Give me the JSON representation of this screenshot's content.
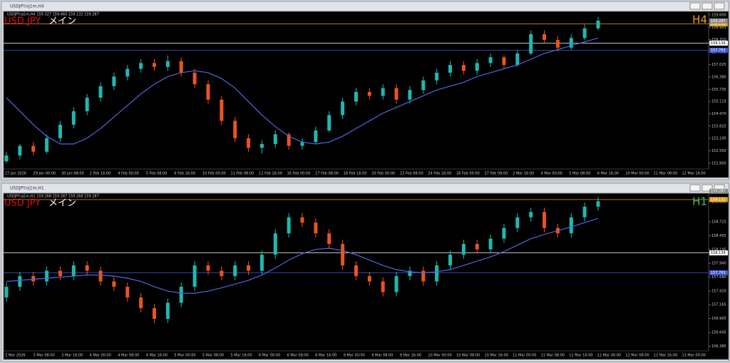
{
  "windows": [
    {
      "title": "USDJPY.oj1m,H4",
      "info": "USDJPY.oj1m,H4  159.327 159.460 159.132 159.287",
      "symbol": "USD JPY",
      "label": "メイン",
      "timeframe": "H4",
      "timeframe_color": "#f0a020",
      "ylim": [
        151.6,
        159.78
      ],
      "price_ticks": [
        {
          "value": 159.6,
          "label": "159.600"
        },
        158.955,
        {
          "value": 158.31,
          "label": "158.310"
        },
        157.665,
        157.025,
        {
          "value": 156.38,
          "label": "156.380"
        },
        155.735,
        155.115,
        {
          "value": 154.47,
          "label": "154.470"
        },
        153.825,
        153.195,
        {
          "value": 152.55,
          "label": "152.550"
        },
        151.905
      ],
      "levels": [
        {
          "price": 159.132,
          "color": "#e0a020"
        },
        {
          "price": 158.134,
          "color": "#ffffff"
        },
        {
          "price": 157.763,
          "color": "#3d5ad8"
        }
      ],
      "current_price": 159.287,
      "up_color": "#1fb8b0",
      "down_color": "#ea5420",
      "ma_color": "#5066e0",
      "candles": [
        [
          152.0,
          152.5,
          151.9,
          152.3
        ],
        [
          152.3,
          152.9,
          152.1,
          152.8
        ],
        [
          152.8,
          153.0,
          152.3,
          152.5
        ],
        [
          152.5,
          153.4,
          152.4,
          153.2
        ],
        [
          153.2,
          154.1,
          153.0,
          153.9
        ],
        [
          153.9,
          154.8,
          153.7,
          154.6
        ],
        [
          154.6,
          155.5,
          154.4,
          155.3
        ],
        [
          155.3,
          156.1,
          155.1,
          155.9
        ],
        [
          155.9,
          156.6,
          155.7,
          156.4
        ],
        [
          156.4,
          157.0,
          156.2,
          156.8
        ],
        [
          156.8,
          157.3,
          156.6,
          157.1
        ],
        [
          157.1,
          157.3,
          156.7,
          156.9
        ],
        [
          156.9,
          157.5,
          156.7,
          157.2
        ],
        [
          157.2,
          157.4,
          156.4,
          156.6
        ],
        [
          156.6,
          156.8,
          155.8,
          156.0
        ],
        [
          156.0,
          156.2,
          155.0,
          155.2
        ],
        [
          155.2,
          155.4,
          153.9,
          154.1
        ],
        [
          154.1,
          154.3,
          153.0,
          153.2
        ],
        [
          153.2,
          153.4,
          152.5,
          152.7
        ],
        [
          152.7,
          153.1,
          152.4,
          152.9
        ],
        [
          152.9,
          153.6,
          152.7,
          153.4
        ],
        [
          153.4,
          153.5,
          152.6,
          152.8
        ],
        [
          152.8,
          153.2,
          152.6,
          153.0
        ],
        [
          153.0,
          153.8,
          152.9,
          153.6
        ],
        [
          153.6,
          154.6,
          153.5,
          154.4
        ],
        [
          154.4,
          155.3,
          154.2,
          155.1
        ],
        [
          155.1,
          155.8,
          154.9,
          155.6
        ],
        [
          155.6,
          155.8,
          155.2,
          155.4
        ],
        [
          155.4,
          156.0,
          155.2,
          155.8
        ],
        [
          155.8,
          156.0,
          155.0,
          155.2
        ],
        [
          155.2,
          155.9,
          155.0,
          155.7
        ],
        [
          155.7,
          156.4,
          155.5,
          156.2
        ],
        [
          156.2,
          156.8,
          156.0,
          156.6
        ],
        [
          156.6,
          157.2,
          156.4,
          157.0
        ],
        [
          157.0,
          157.2,
          156.5,
          156.7
        ],
        [
          156.7,
          157.3,
          156.5,
          157.1
        ],
        [
          157.1,
          157.6,
          156.9,
          157.4
        ],
        [
          157.4,
          157.5,
          156.8,
          157.0
        ],
        [
          157.0,
          157.8,
          156.9,
          157.6
        ],
        [
          157.6,
          158.8,
          157.5,
          158.6
        ],
        [
          158.6,
          158.8,
          158.1,
          158.3
        ],
        [
          158.3,
          158.5,
          157.7,
          157.9
        ],
        [
          157.9,
          158.6,
          157.8,
          158.4
        ],
        [
          158.4,
          159.1,
          158.3,
          158.9
        ],
        [
          158.9,
          159.5,
          158.8,
          159.3
        ]
      ],
      "ma": [
        155.3,
        154.6,
        153.9,
        153.3,
        152.9,
        152.9,
        153.2,
        153.7,
        154.3,
        154.9,
        155.5,
        156.0,
        156.4,
        156.6,
        156.7,
        156.6,
        156.3,
        155.8,
        155.1,
        154.4,
        153.8,
        153.3,
        153.0,
        152.9,
        153.0,
        153.3,
        153.7,
        154.1,
        154.5,
        154.8,
        155.1,
        155.4,
        155.7,
        155.9,
        156.1,
        156.4,
        156.6,
        156.8,
        157.0,
        157.3,
        157.6,
        157.8,
        158.0,
        158.2,
        158.4
      ],
      "time_labels": [
        "27 Jan 2026",
        "29 Jan 00:00",
        "30 Jan 08:00",
        "2 Feb 16:00",
        "4 Feb 00:00",
        "5 Feb 08:00",
        "6 Feb 16:00",
        "10 Feb 00:00",
        "11 Feb 08:00",
        "12 Feb 16:00",
        "16 Feb 00:00",
        "17 Feb 08:00",
        "18 Feb 16:00",
        "20 Feb 00:00",
        "23 Feb 08:00",
        "24 Feb 16:00",
        "26 Feb 00:00",
        "27 Feb 08:00",
        "2 Mar 16:00",
        "4 Mar 00:00",
        "5 Mar 08:00",
        "6 Mar 16:00",
        "10 Mar 00:00",
        "11 Mar 08:00",
        "12 Mar 16:00"
      ]
    },
    {
      "title": "USDJPY.oj1m,H1",
      "info": "USDJPY.oj1m,H1  159.268 159.287 159.268 159.287",
      "symbol": "USD JPY",
      "label": "メイン",
      "timeframe": "H1",
      "timeframe_color": "#3cc83c",
      "ylim": [
        156.3,
        159.25
      ],
      "price_ticks": [
        {
          "value": 159.09,
          "label": "159.090"
        },
        158.715,
        158.455,
        158.195,
        {
          "value": 157.94,
          "label": "157.940"
        },
        {
          "value": 157.68,
          "label": "157.680"
        },
        {
          "value": 157.42,
          "label": "157.420"
        },
        157.165,
        156.905,
        156.645,
        156.385
      ],
      "levels": [
        {
          "price": 159.132,
          "color": "#e0a020"
        },
        {
          "price": 158.134,
          "color": "#ffffff"
        },
        {
          "price": 157.763,
          "color": "#3d5ad8"
        }
      ],
      "current_price": 159.287,
      "up_color": "#1fb8b0",
      "down_color": "#ea5420",
      "ma_color": "#5066e0",
      "candles": [
        [
          157.3,
          157.58,
          157.22,
          157.5
        ],
        [
          157.5,
          157.78,
          157.42,
          157.7
        ],
        [
          157.7,
          157.78,
          157.52,
          157.6
        ],
        [
          157.6,
          157.88,
          157.52,
          157.8
        ],
        [
          157.8,
          157.88,
          157.62,
          157.7
        ],
        [
          157.7,
          157.98,
          157.62,
          157.9
        ],
        [
          157.9,
          157.98,
          157.72,
          157.8
        ],
        [
          157.8,
          157.88,
          157.52,
          157.6
        ],
        [
          157.6,
          157.68,
          157.42,
          157.5
        ],
        [
          157.5,
          157.58,
          157.22,
          157.3
        ],
        [
          157.3,
          157.38,
          157.02,
          157.1
        ],
        [
          157.1,
          157.18,
          156.82,
          156.9
        ],
        [
          156.9,
          157.28,
          156.82,
          157.2
        ],
        [
          157.2,
          157.58,
          157.12,
          157.5
        ],
        [
          157.5,
          157.98,
          157.42,
          157.9
        ],
        [
          157.9,
          157.98,
          157.72,
          157.8
        ],
        [
          157.8,
          157.88,
          157.62,
          157.7
        ],
        [
          157.7,
          157.98,
          157.62,
          157.9
        ],
        [
          157.9,
          157.98,
          157.72,
          157.8
        ],
        [
          157.8,
          158.18,
          157.72,
          158.1
        ],
        [
          158.1,
          158.58,
          158.02,
          158.5
        ],
        [
          158.5,
          158.88,
          158.42,
          158.8
        ],
        [
          158.8,
          158.88,
          158.62,
          158.7
        ],
        [
          158.7,
          158.78,
          158.42,
          158.5
        ],
        [
          158.5,
          158.58,
          158.22,
          158.3
        ],
        [
          158.3,
          158.38,
          157.82,
          157.9
        ],
        [
          157.9,
          157.98,
          157.62,
          157.7
        ],
        [
          157.7,
          157.78,
          157.52,
          157.6
        ],
        [
          157.6,
          157.68,
          157.32,
          157.4
        ],
        [
          157.4,
          157.78,
          157.32,
          157.7
        ],
        [
          157.7,
          157.88,
          157.62,
          157.8
        ],
        [
          157.8,
          157.88,
          157.52,
          157.6
        ],
        [
          157.6,
          157.98,
          157.52,
          157.9
        ],
        [
          157.9,
          158.18,
          157.82,
          158.1
        ],
        [
          158.1,
          158.38,
          158.02,
          158.3
        ],
        [
          158.3,
          158.38,
          158.12,
          158.2
        ],
        [
          158.2,
          158.48,
          158.12,
          158.4
        ],
        [
          158.4,
          158.68,
          158.32,
          158.6
        ],
        [
          158.6,
          158.88,
          158.52,
          158.8
        ],
        [
          158.8,
          158.98,
          158.72,
          158.9
        ],
        [
          158.9,
          158.98,
          158.52,
          158.6
        ],
        [
          158.6,
          158.68,
          158.42,
          158.5
        ],
        [
          158.5,
          158.88,
          158.42,
          158.8
        ],
        [
          158.8,
          159.08,
          158.72,
          159.0
        ],
        [
          159.0,
          159.18,
          158.92,
          159.1
        ]
      ],
      "ma": [
        157.6,
        157.62,
        157.64,
        157.66,
        157.68,
        157.7,
        157.72,
        157.72,
        157.7,
        157.66,
        157.6,
        157.5,
        157.42,
        157.38,
        157.38,
        157.42,
        157.48,
        157.55,
        157.62,
        157.72,
        157.85,
        158.0,
        158.12,
        158.2,
        158.22,
        158.18,
        158.1,
        158.0,
        157.9,
        157.82,
        157.78,
        157.76,
        157.78,
        157.82,
        157.9,
        157.98,
        158.06,
        158.16,
        158.28,
        158.4,
        158.48,
        158.55,
        158.62,
        158.7,
        158.78
      ],
      "time_labels": [
        "3 Mar 2026",
        "3 Mar 08:00",
        "3 Mar 16:00",
        "4 Mar 00:00",
        "4 Mar 08:00",
        "4 Mar 16:00",
        "5 Mar 00:00",
        "5 Mar 08:00",
        "5 Mar 16:00",
        "6 Mar 00:00",
        "6 Mar 08:00",
        "6 Mar 16:00",
        "9 Mar 00:00",
        "9 Mar 08:00",
        "9 Mar 16:00",
        "10 Mar 00:00",
        "10 Mar 08:00",
        "10 Mar 16:00",
        "11 Mar 00:00",
        "11 Mar 08:00",
        "11 Mar 16:00",
        "12 Mar 00:00",
        "12 Mar 08:00",
        "12 Mar 16:00",
        "13 Mar 00:00"
      ]
    }
  ]
}
